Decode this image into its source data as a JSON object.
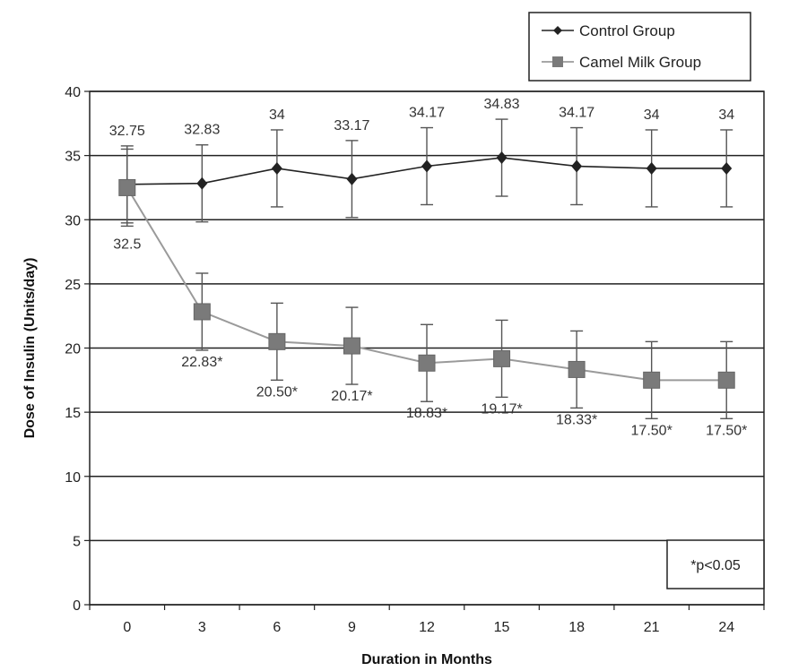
{
  "chart_data": {
    "type": "line",
    "xlabel": "Duration in Months",
    "ylabel": "Dose of Insulin (Units/day)",
    "x": [
      0,
      3,
      6,
      9,
      12,
      15,
      18,
      21,
      24
    ],
    "ylim": [
      0,
      40
    ],
    "yticks": [
      0,
      5,
      10,
      15,
      20,
      25,
      30,
      35,
      40
    ],
    "grid": "horizontal",
    "legend_position": "top-right",
    "annotation": "*p<0.05",
    "series": [
      {
        "name": "Control Group",
        "marker": "diamond",
        "color": "#222222",
        "values": [
          32.75,
          32.83,
          34,
          33.17,
          34.17,
          34.83,
          34.17,
          34,
          34
        ],
        "error": 3,
        "labels": [
          "32.75",
          "32.83",
          "34",
          "33.17",
          "34.17",
          "34.83",
          "34.17",
          "34",
          "34"
        ]
      },
      {
        "name": "Camel Milk Group",
        "marker": "square",
        "color": "#7a7a7a",
        "values": [
          32.5,
          22.83,
          20.5,
          20.17,
          18.83,
          19.17,
          18.33,
          17.5,
          17.5
        ],
        "error": 3,
        "labels": [
          "32.5",
          "22.83*",
          "20.50*",
          "20.17*",
          "18.83*",
          "19.17*",
          "18.33*",
          "17.50*",
          "17.50*"
        ]
      }
    ]
  }
}
